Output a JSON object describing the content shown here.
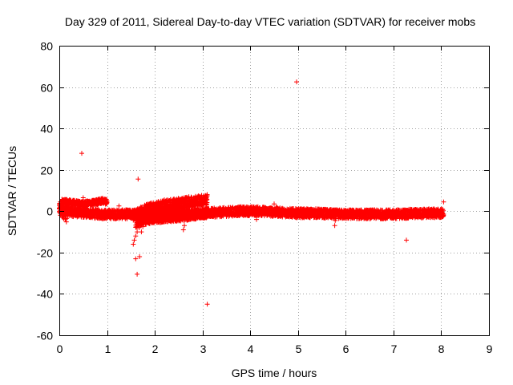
{
  "chart_data": {
    "type": "scatter",
    "title": "Day 329 of 2011, Sidereal Day-to-day VTEC variation (SDTVAR) for receiver mobs",
    "xlabel": "GPS time / hours",
    "ylabel": "SDTVAR / TECUs",
    "xlim": [
      0,
      9
    ],
    "ylim": [
      -60,
      80
    ],
    "xticks": [
      0,
      1,
      2,
      3,
      4,
      5,
      6,
      7,
      8,
      9
    ],
    "yticks": [
      -60,
      -40,
      -20,
      0,
      20,
      40,
      60,
      80
    ],
    "grid": true,
    "marker": "+",
    "color": "#ff0000",
    "bands": [
      {
        "name": "main-band",
        "x": [
          0.0,
          0.3,
          0.6,
          0.9,
          1.2,
          1.5,
          1.8,
          2.0,
          2.3,
          2.6,
          3.0,
          3.4,
          3.8,
          4.2,
          4.6,
          5.0,
          5.4,
          5.8,
          6.2,
          6.6,
          7.0,
          7.4,
          7.8,
          8.05
        ],
        "y": [
          0.5,
          -0.5,
          -1.0,
          -1.5,
          -1.5,
          -1.5,
          -1.0,
          -0.5,
          -1.0,
          -1.5,
          -1.0,
          -0.5,
          0.0,
          0.0,
          -0.5,
          -1.0,
          -1.0,
          -1.5,
          -1.5,
          -1.5,
          -1.5,
          -1.2,
          -1.0,
          -1.0
        ],
        "spread": 2.2
      },
      {
        "name": "upper-arc",
        "x": [
          0.05,
          0.3,
          0.5,
          0.7,
          0.9,
          1.0
        ],
        "y": [
          4.5,
          4.0,
          3.5,
          4.0,
          5.0,
          4.5
        ],
        "spread": 1.3
      },
      {
        "name": "rising-band",
        "x": [
          1.55,
          1.8,
          2.0,
          2.3,
          2.6,
          2.9,
          3.1
        ],
        "y": [
          -2.0,
          0.5,
          2.0,
          3.0,
          4.0,
          5.0,
          5.5
        ],
        "spread": 2.6
      },
      {
        "name": "lower-band",
        "x": [
          1.6,
          1.75,
          2.0,
          2.3,
          2.6,
          2.9,
          3.1
        ],
        "y": [
          -6.0,
          -4.5,
          -3.5,
          -3.0,
          -2.5,
          -1.5,
          -1.0
        ],
        "spread": 2.2
      },
      {
        "name": "start-cluster",
        "x": [
          0.0,
          0.08,
          0.15
        ],
        "y": [
          2.0,
          0.0,
          -2.0
        ],
        "spread": 3.5
      }
    ],
    "outliers": [
      [
        0.47,
        28.0
      ],
      [
        0.5,
        6.5
      ],
      [
        1.65,
        15.5
      ],
      [
        1.63,
        -30.5
      ],
      [
        1.6,
        -23.0
      ],
      [
        1.68,
        -22.0
      ],
      [
        1.55,
        -16.0
      ],
      [
        1.57,
        -14.0
      ],
      [
        1.6,
        -12.0
      ],
      [
        1.63,
        -10.0
      ],
      [
        1.67,
        -8.0
      ],
      [
        1.7,
        -6.0
      ],
      [
        1.75,
        -7.5
      ],
      [
        1.72,
        -10.0
      ],
      [
        1.25,
        2.5
      ],
      [
        3.1,
        -45.0
      ],
      [
        4.97,
        62.5
      ],
      [
        8.05,
        4.5
      ],
      [
        7.27,
        -14.0
      ],
      [
        5.77,
        -7.0
      ],
      [
        5.78,
        -4.5
      ],
      [
        4.13,
        -4.0
      ],
      [
        4.5,
        3.5
      ],
      [
        4.55,
        2.0
      ],
      [
        2.6,
        -9.0
      ],
      [
        2.62,
        -7.0
      ],
      [
        2.2,
        5.5
      ],
      [
        7.28,
        -3.5
      ],
      [
        0.5,
        -3.0
      ]
    ]
  }
}
